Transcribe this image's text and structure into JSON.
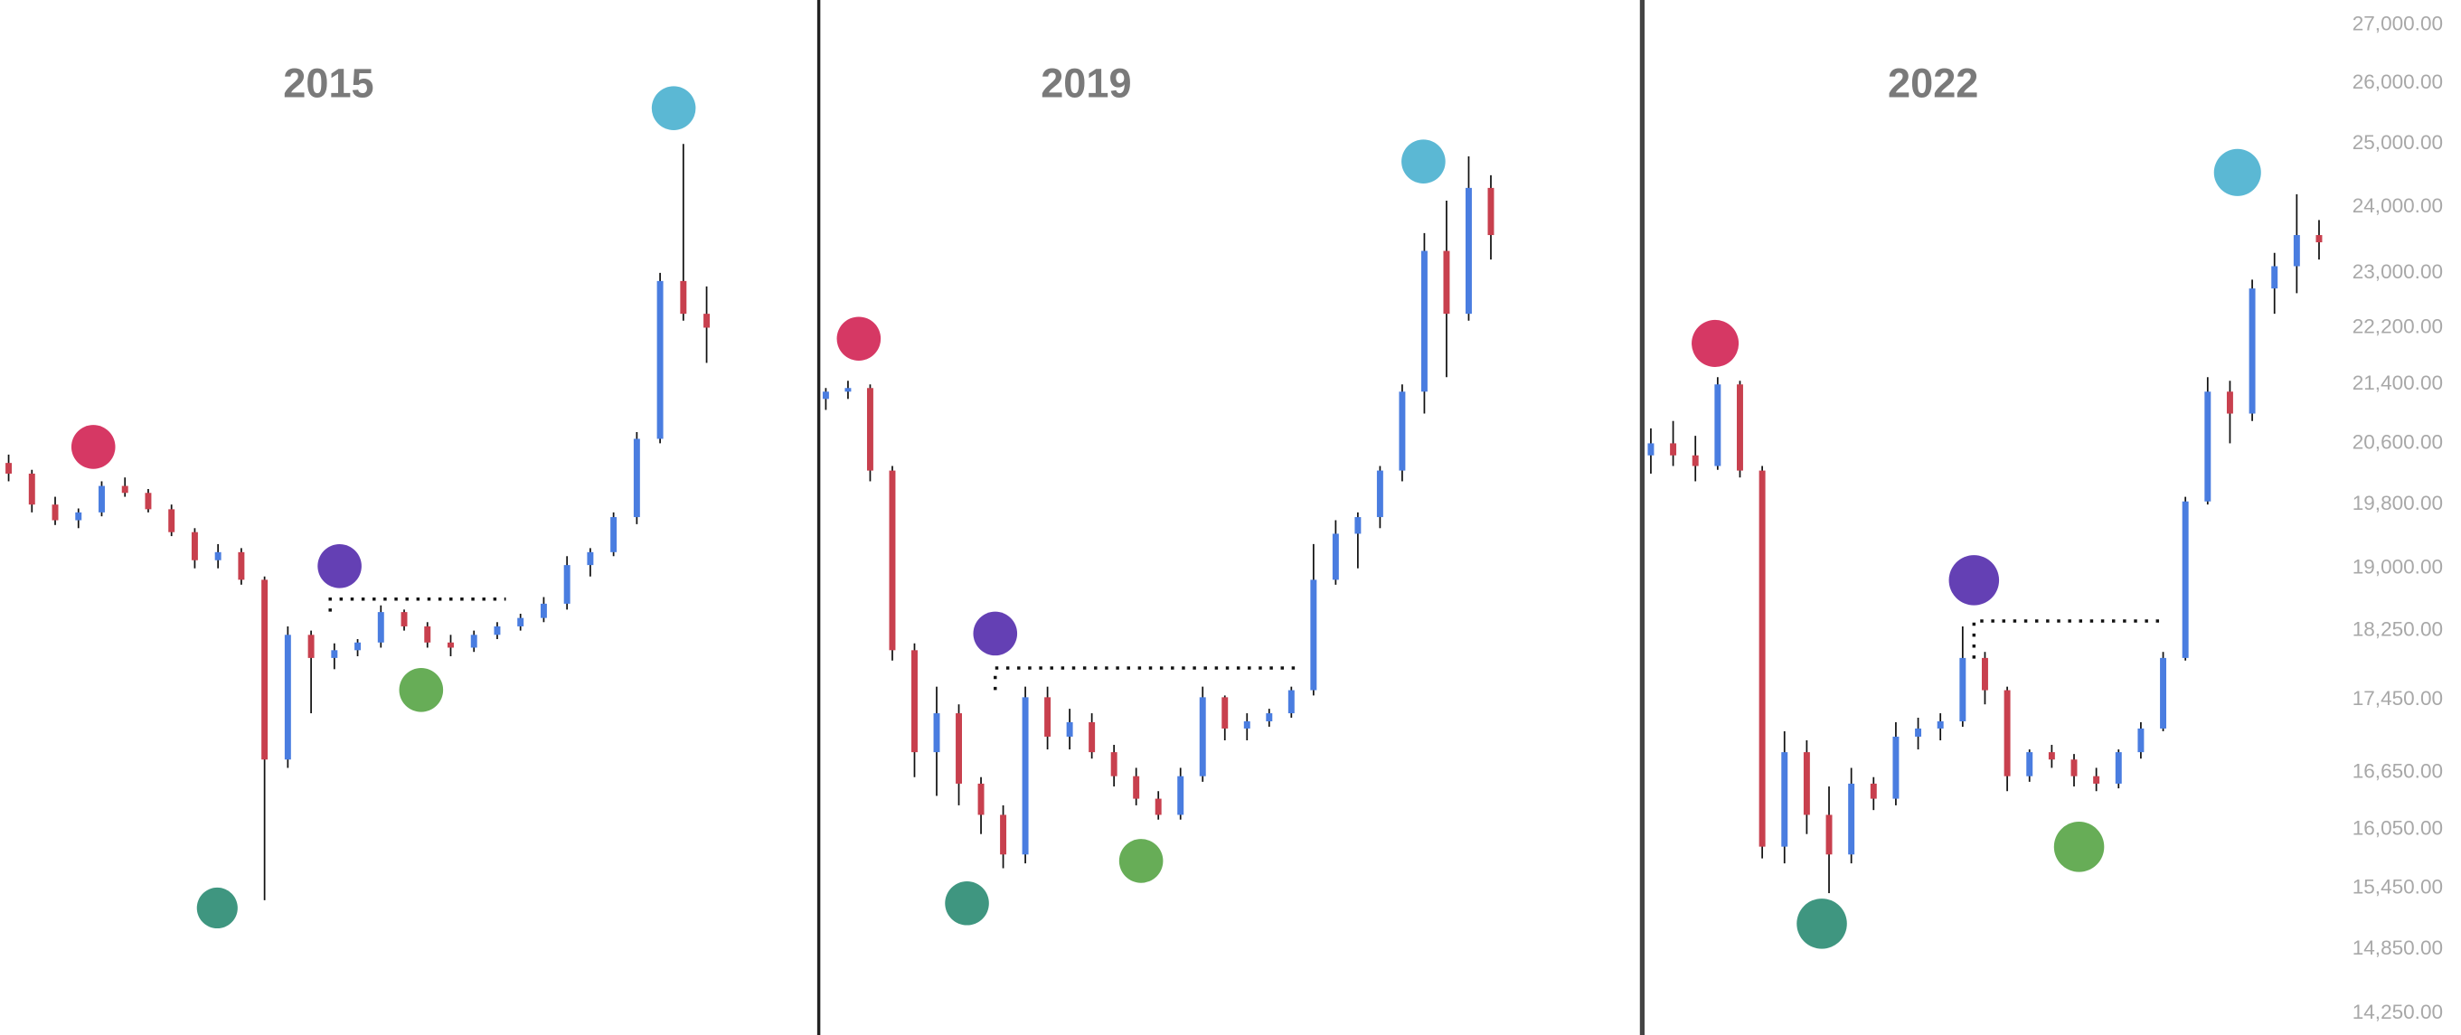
{
  "chart_data": [
    {
      "type": "candlestick",
      "title": "2015",
      "log_y": true,
      "ylim": [
        14050,
        27440
      ],
      "up_color": "#4a7de0",
      "down_color": "#c8404e",
      "candles": [
        [
          20340,
          20450,
          20100,
          20200
        ],
        [
          20200,
          20250,
          19700,
          19800
        ],
        [
          19800,
          19900,
          19540,
          19600
        ],
        [
          19600,
          19750,
          19500,
          19700
        ],
        [
          19700,
          20100,
          19650,
          20040
        ],
        [
          20040,
          20150,
          19900,
          19950
        ],
        [
          19950,
          20000,
          19700,
          19740
        ],
        [
          19740,
          19800,
          19400,
          19450
        ],
        [
          19450,
          19500,
          19000,
          19100
        ],
        [
          19100,
          19300,
          19000,
          19200
        ],
        [
          19200,
          19250,
          18800,
          18860
        ],
        [
          18860,
          18900,
          15330,
          16790
        ],
        [
          16790,
          18300,
          16700,
          18200
        ],
        [
          18200,
          18250,
          17300,
          17930
        ],
        [
          17930,
          18100,
          17800,
          18020
        ],
        [
          18020,
          18150,
          17950,
          18110
        ],
        [
          18110,
          18550,
          18050,
          18470
        ],
        [
          18470,
          18500,
          18250,
          18300
        ],
        [
          18300,
          18350,
          18050,
          18110
        ],
        [
          18110,
          18200,
          17950,
          18050
        ],
        [
          18050,
          18250,
          18000,
          18200
        ],
        [
          18200,
          18350,
          18150,
          18300
        ],
        [
          18300,
          18450,
          18250,
          18400
        ],
        [
          18400,
          18650,
          18350,
          18570
        ],
        [
          18570,
          19150,
          18500,
          19040
        ],
        [
          19040,
          19250,
          18900,
          19200
        ],
        [
          19200,
          19700,
          19150,
          19640
        ],
        [
          19640,
          20750,
          19550,
          20660
        ],
        [
          20660,
          23000,
          20600,
          22880
        ],
        [
          22880,
          25000,
          22300,
          22400
        ],
        [
          22400,
          22800,
          21700,
          22200
        ]
      ]
    },
    {
      "type": "candlestick",
      "title": "2019",
      "log_y": true,
      "ylim": [
        14050,
        27440
      ],
      "up_color": "#4a7de0",
      "down_color": "#c8404e",
      "candles": [
        [
          21200,
          21350,
          21050,
          21300
        ],
        [
          21300,
          21450,
          21200,
          21350
        ],
        [
          21350,
          21400,
          20100,
          20240
        ],
        [
          20240,
          20300,
          17900,
          18020
        ],
        [
          18020,
          18100,
          16600,
          16870
        ],
        [
          16870,
          17600,
          16400,
          17300
        ],
        [
          17300,
          17400,
          16300,
          16530
        ],
        [
          16530,
          16600,
          16000,
          16200
        ],
        [
          16200,
          16300,
          15650,
          15790
        ],
        [
          15790,
          17600,
          15700,
          17480
        ],
        [
          17480,
          17600,
          16900,
          17040
        ],
        [
          17040,
          17350,
          16900,
          17200
        ],
        [
          17200,
          17300,
          16800,
          16870
        ],
        [
          16870,
          16950,
          16500,
          16610
        ],
        [
          16610,
          16700,
          16300,
          16370
        ],
        [
          16370,
          16450,
          16150,
          16200
        ],
        [
          16200,
          16700,
          16150,
          16610
        ],
        [
          16610,
          17600,
          16550,
          17480
        ],
        [
          17480,
          17500,
          17000,
          17130
        ],
        [
          17130,
          17300,
          17000,
          17210
        ],
        [
          17210,
          17350,
          17150,
          17300
        ],
        [
          17300,
          17600,
          17250,
          17560
        ],
        [
          17560,
          19300,
          17500,
          18860
        ],
        [
          18860,
          19600,
          18800,
          19430
        ],
        [
          19430,
          19700,
          19000,
          19640
        ],
        [
          19640,
          20300,
          19500,
          20240
        ],
        [
          20240,
          21400,
          20100,
          21300
        ],
        [
          21300,
          23600,
          21000,
          23330
        ],
        [
          23330,
          24100,
          21500,
          22400
        ],
        [
          22400,
          24800,
          22300,
          24300
        ],
        [
          24300,
          24500,
          23200,
          23570
        ]
      ]
    },
    {
      "type": "candlestick",
      "title": "2022",
      "log_y": true,
      "ylim": [
        14050,
        27440
      ],
      "up_color": "#4a7de0",
      "down_color": "#c8404e",
      "yticks": [
        {
          "value": 27000,
          "label": "27,000.00"
        },
        {
          "value": 26000,
          "label": "26,000.00"
        },
        {
          "value": 25000,
          "label": "25,000.00"
        },
        {
          "value": 24000,
          "label": "24,000.00"
        },
        {
          "value": 23000,
          "label": "23,000.00"
        },
        {
          "value": 22200,
          "label": "22,200.00"
        },
        {
          "value": 21400,
          "label": "21,400.00"
        },
        {
          "value": 20600,
          "label": "20,600.00"
        },
        {
          "value": 19800,
          "label": "19,800.00"
        },
        {
          "value": 19000,
          "label": "19,000.00"
        },
        {
          "value": 18250,
          "label": "18,250.00"
        },
        {
          "value": 17450,
          "label": "17,450.00"
        },
        {
          "value": 16650,
          "label": "16,650.00"
        },
        {
          "value": 16050,
          "label": "16,050.00"
        },
        {
          "value": 15450,
          "label": "15,450.00"
        },
        {
          "value": 14850,
          "label": "14,850.00"
        },
        {
          "value": 14250,
          "label": "14,250.00"
        }
      ],
      "candles": [
        [
          20440,
          20800,
          20200,
          20600
        ],
        [
          20600,
          20900,
          20300,
          20440
        ],
        [
          20440,
          20700,
          20100,
          20300
        ],
        [
          20300,
          21500,
          20250,
          21400
        ],
        [
          21400,
          21450,
          20150,
          20240
        ],
        [
          20240,
          20300,
          15750,
          15870
        ],
        [
          15870,
          17100,
          15700,
          16870
        ],
        [
          16870,
          17000,
          16000,
          16200
        ],
        [
          16200,
          16500,
          15400,
          15790
        ],
        [
          15790,
          16700,
          15700,
          16530
        ],
        [
          16530,
          16600,
          16250,
          16370
        ],
        [
          16370,
          17200,
          16300,
          17040
        ],
        [
          17040,
          17250,
          16900,
          17130
        ],
        [
          17130,
          17300,
          17000,
          17210
        ],
        [
          17210,
          18300,
          17150,
          17930
        ],
        [
          17930,
          18000,
          17400,
          17560
        ],
        [
          17560,
          17600,
          16450,
          16610
        ],
        [
          16610,
          16900,
          16550,
          16870
        ],
        [
          16870,
          16950,
          16700,
          16790
        ],
        [
          16790,
          16850,
          16500,
          16610
        ],
        [
          16610,
          16700,
          16450,
          16530
        ],
        [
          16530,
          16900,
          16480,
          16870
        ],
        [
          16870,
          17200,
          16800,
          17130
        ],
        [
          17130,
          18000,
          17100,
          17930
        ],
        [
          17930,
          19900,
          17900,
          19840
        ],
        [
          19840,
          21500,
          19800,
          21300
        ],
        [
          21300,
          21450,
          20600,
          21000
        ],
        [
          21000,
          22900,
          20900,
          22770
        ],
        [
          22770,
          23300,
          22400,
          23100
        ],
        [
          23100,
          24200,
          22700,
          23570
        ],
        [
          23570,
          23800,
          23200,
          23460
        ]
      ]
    }
  ]
}
